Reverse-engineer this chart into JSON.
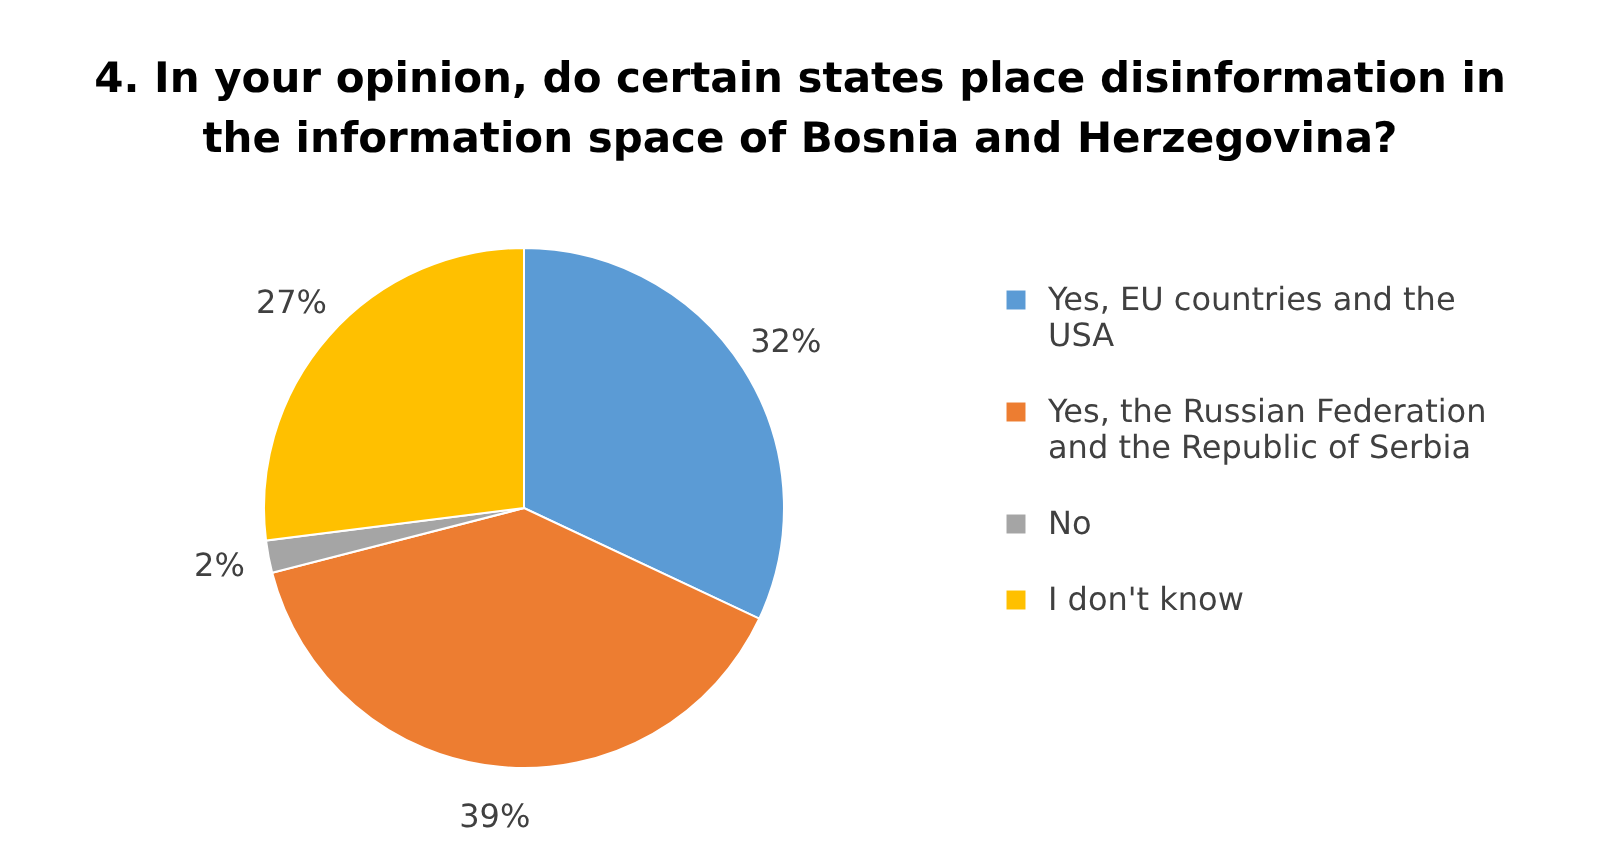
{
  "chart_data": {
    "type": "pie",
    "title": "4. In your opinion, do certain states place disinformation in the information space of Bosnia and Herzegovina?",
    "categories": [
      "Yes, EU countries and the USA",
      "Yes, the Russian Federation and the Republic of Serbia",
      "No",
      "I don't know"
    ],
    "values": [
      32,
      39,
      2,
      27
    ],
    "colors": [
      "#5b9bd5",
      "#ed7d31",
      "#a5a5a5",
      "#ffc000"
    ],
    "value_labels": [
      "32%",
      "39%",
      "2%",
      "27%"
    ],
    "legend": "right"
  }
}
